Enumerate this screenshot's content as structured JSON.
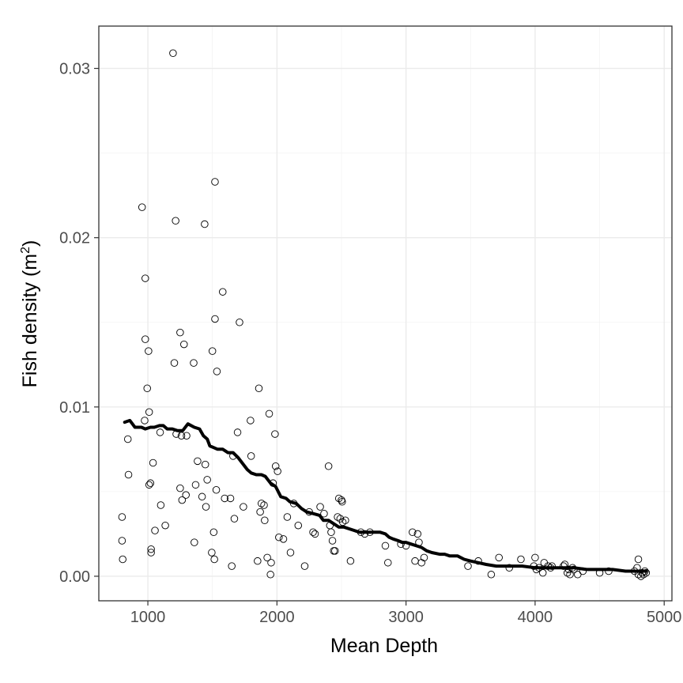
{
  "chart_data": {
    "type": "scatter",
    "title": "",
    "xlabel": "Mean Depth",
    "ylabel_main": "Fish density (m",
    "ylabel_sup": "2",
    "ylabel_close": ")",
    "xlim": [
      620,
      5060
    ],
    "ylim": [
      -0.00145,
      0.0325
    ],
    "x_ticks": [
      1000,
      2000,
      3000,
      4000,
      5000
    ],
    "x_tick_labels": [
      "1000",
      "2000",
      "3000",
      "4000",
      "5000"
    ],
    "y_ticks": [
      0.0,
      0.01,
      0.02,
      0.03
    ],
    "y_tick_labels": [
      "0.00",
      "0.01",
      "0.02",
      "0.03"
    ],
    "grid": true,
    "legend": "none",
    "points": [
      [
        800,
        0.0035
      ],
      [
        800,
        0.0021
      ],
      [
        805,
        0.001
      ],
      [
        845,
        0.0081
      ],
      [
        850,
        0.006
      ],
      [
        955,
        0.0218
      ],
      [
        975,
        0.0092
      ],
      [
        980,
        0.0176
      ],
      [
        980,
        0.014
      ],
      [
        995,
        0.0111
      ],
      [
        1005,
        0.0133
      ],
      [
        1010,
        0.0097
      ],
      [
        1010,
        0.0054
      ],
      [
        1020,
        0.0055
      ],
      [
        1025,
        0.0016
      ],
      [
        1025,
        0.0014
      ],
      [
        1040,
        0.0067
      ],
      [
        1055,
        0.0027
      ],
      [
        1095,
        0.0085
      ],
      [
        1100,
        0.0042
      ],
      [
        1135,
        0.003
      ],
      [
        1195,
        0.0309
      ],
      [
        1205,
        0.0126
      ],
      [
        1215,
        0.021
      ],
      [
        1220,
        0.0084
      ],
      [
        1250,
        0.0144
      ],
      [
        1250,
        0.0052
      ],
      [
        1260,
        0.0083
      ],
      [
        1265,
        0.0045
      ],
      [
        1280,
        0.0137
      ],
      [
        1295,
        0.0048
      ],
      [
        1300,
        0.0083
      ],
      [
        1355,
        0.0126
      ],
      [
        1360,
        0.002
      ],
      [
        1370,
        0.0054
      ],
      [
        1385,
        0.0068
      ],
      [
        1420,
        0.0047
      ],
      [
        1440,
        0.0208
      ],
      [
        1445,
        0.0066
      ],
      [
        1450,
        0.0041
      ],
      [
        1460,
        0.0057
      ],
      [
        1495,
        0.0014
      ],
      [
        1500,
        0.0133
      ],
      [
        1510,
        0.0026
      ],
      [
        1515,
        0.001
      ],
      [
        1520,
        0.0152
      ],
      [
        1520,
        0.0233
      ],
      [
        1530,
        0.0051
      ],
      [
        1535,
        0.0121
      ],
      [
        1580,
        0.0168
      ],
      [
        1595,
        0.0046
      ],
      [
        1640,
        0.0046
      ],
      [
        1650,
        0.0006
      ],
      [
        1660,
        0.0071
      ],
      [
        1670,
        0.0034
      ],
      [
        1695,
        0.0085
      ],
      [
        1710,
        0.015
      ],
      [
        1740,
        0.0041
      ],
      [
        1795,
        0.0092
      ],
      [
        1800,
        0.0071
      ],
      [
        1850,
        0.0009
      ],
      [
        1860,
        0.0111
      ],
      [
        1870,
        0.0038
      ],
      [
        1880,
        0.0043
      ],
      [
        1900,
        0.0042
      ],
      [
        1905,
        0.0033
      ],
      [
        1925,
        0.0011
      ],
      [
        1940,
        0.0096
      ],
      [
        1950,
        0.0001
      ],
      [
        1955,
        0.0008
      ],
      [
        1970,
        0.0055
      ],
      [
        1985,
        0.0084
      ],
      [
        1990,
        0.0065
      ],
      [
        2005,
        0.0062
      ],
      [
        2015,
        0.0023
      ],
      [
        2050,
        0.0022
      ],
      [
        2080,
        0.0035
      ],
      [
        2105,
        0.0014
      ],
      [
        2130,
        0.0043
      ],
      [
        2165,
        0.003
      ],
      [
        2215,
        0.0006
      ],
      [
        2250,
        0.0038
      ],
      [
        2280,
        0.0026
      ],
      [
        2295,
        0.0025
      ],
      [
        2335,
        0.0041
      ],
      [
        2365,
        0.0037
      ],
      [
        2400,
        0.0065
      ],
      [
        2410,
        0.003
      ],
      [
        2420,
        0.0026
      ],
      [
        2430,
        0.0021
      ],
      [
        2440,
        0.0015
      ],
      [
        2450,
        0.0015
      ],
      [
        2470,
        0.0035
      ],
      [
        2480,
        0.0046
      ],
      [
        2490,
        0.0034
      ],
      [
        2500,
        0.0045
      ],
      [
        2505,
        0.0044
      ],
      [
        2510,
        0.0032
      ],
      [
        2530,
        0.0033
      ],
      [
        2570,
        0.0009
      ],
      [
        2650,
        0.0026
      ],
      [
        2680,
        0.0025
      ],
      [
        2720,
        0.0026
      ],
      [
        2840,
        0.0018
      ],
      [
        2860,
        0.0008
      ],
      [
        2960,
        0.0019
      ],
      [
        3000,
        0.0018
      ],
      [
        3050,
        0.0026
      ],
      [
        3070,
        0.0009
      ],
      [
        3090,
        0.0025
      ],
      [
        3100,
        0.002
      ],
      [
        3120,
        0.0008
      ],
      [
        3140,
        0.0011
      ],
      [
        3480,
        0.0006
      ],
      [
        3560,
        0.0009
      ],
      [
        3660,
        0.0001
      ],
      [
        3720,
        0.0011
      ],
      [
        3800,
        0.0005
      ],
      [
        3890,
        0.001
      ],
      [
        3990,
        0.0006
      ],
      [
        4000,
        0.0011
      ],
      [
        4010,
        0.0004
      ],
      [
        4030,
        0.0005
      ],
      [
        4060,
        0.0002
      ],
      [
        4070,
        0.0008
      ],
      [
        4100,
        0.0006
      ],
      [
        4120,
        0.0005
      ],
      [
        4130,
        0.0006
      ],
      [
        4220,
        0.0006
      ],
      [
        4230,
        0.0007
      ],
      [
        4250,
        0.0002
      ],
      [
        4260,
        0.0004
      ],
      [
        4270,
        0.0001
      ],
      [
        4290,
        0.0005
      ],
      [
        4300,
        0.0004
      ],
      [
        4330,
        0.0001
      ],
      [
        4370,
        0.0003
      ],
      [
        4500,
        0.0002
      ],
      [
        4570,
        0.0003
      ],
      [
        4770,
        0.0003
      ],
      [
        4790,
        0.0005
      ],
      [
        4800,
        0.0001
      ],
      [
        4800,
        0.001
      ],
      [
        4820,
        0.0
      ],
      [
        4830,
        0.0002
      ],
      [
        4840,
        0.0001
      ],
      [
        4850,
        0.0003
      ],
      [
        4860,
        0.0002
      ]
    ],
    "trend_line": [
      [
        820,
        0.0091
      ],
      [
        860,
        0.0092
      ],
      [
        880,
        0.009
      ],
      [
        900,
        0.0088
      ],
      [
        950,
        0.0088
      ],
      [
        980,
        0.0087
      ],
      [
        1020,
        0.0088
      ],
      [
        1050,
        0.0088
      ],
      [
        1090,
        0.0089
      ],
      [
        1120,
        0.0089
      ],
      [
        1150,
        0.0087
      ],
      [
        1190,
        0.0087
      ],
      [
        1230,
        0.0086
      ],
      [
        1270,
        0.0086
      ],
      [
        1310,
        0.009
      ],
      [
        1360,
        0.0088
      ],
      [
        1400,
        0.0087
      ],
      [
        1430,
        0.0083
      ],
      [
        1460,
        0.0081
      ],
      [
        1480,
        0.0077
      ],
      [
        1510,
        0.0076
      ],
      [
        1540,
        0.0075
      ],
      [
        1580,
        0.0075
      ],
      [
        1620,
        0.0073
      ],
      [
        1660,
        0.0073
      ],
      [
        1700,
        0.007
      ],
      [
        1740,
        0.0066
      ],
      [
        1770,
        0.0063
      ],
      [
        1800,
        0.0061
      ],
      [
        1840,
        0.006
      ],
      [
        1880,
        0.006
      ],
      [
        1910,
        0.0059
      ],
      [
        1950,
        0.0055
      ],
      [
        1990,
        0.0053
      ],
      [
        2030,
        0.0047
      ],
      [
        2070,
        0.0046
      ],
      [
        2100,
        0.0044
      ],
      [
        2150,
        0.0043
      ],
      [
        2190,
        0.004
      ],
      [
        2230,
        0.0038
      ],
      [
        2280,
        0.0037
      ],
      [
        2330,
        0.0036
      ],
      [
        2360,
        0.0033
      ],
      [
        2400,
        0.0033
      ],
      [
        2440,
        0.0031
      ],
      [
        2480,
        0.0029
      ],
      [
        2520,
        0.0029
      ],
      [
        2560,
        0.0028
      ],
      [
        2600,
        0.0027
      ],
      [
        2640,
        0.0026
      ],
      [
        2700,
        0.0026
      ],
      [
        2760,
        0.0026
      ],
      [
        2800,
        0.0026
      ],
      [
        2840,
        0.0025
      ],
      [
        2870,
        0.0023
      ],
      [
        2900,
        0.0022
      ],
      [
        2940,
        0.0021
      ],
      [
        2970,
        0.002
      ],
      [
        3000,
        0.002
      ],
      [
        3040,
        0.0019
      ],
      [
        3080,
        0.0018
      ],
      [
        3120,
        0.0017
      ],
      [
        3160,
        0.0015
      ],
      [
        3200,
        0.0014
      ],
      [
        3260,
        0.0013
      ],
      [
        3300,
        0.0013
      ],
      [
        3340,
        0.0012
      ],
      [
        3400,
        0.0012
      ],
      [
        3450,
        0.001
      ],
      [
        3500,
        0.0009
      ],
      [
        3560,
        0.0008
      ],
      [
        3620,
        0.0007
      ],
      [
        3700,
        0.0006
      ],
      [
        3800,
        0.0006
      ],
      [
        3900,
        0.0006
      ],
      [
        4000,
        0.0005
      ],
      [
        4100,
        0.0005
      ],
      [
        4200,
        0.0005
      ],
      [
        4300,
        0.0005
      ],
      [
        4400,
        0.0004
      ],
      [
        4500,
        0.0004
      ],
      [
        4600,
        0.0004
      ],
      [
        4700,
        0.0003
      ],
      [
        4800,
        0.0003
      ],
      [
        4860,
        0.0003
      ]
    ]
  }
}
